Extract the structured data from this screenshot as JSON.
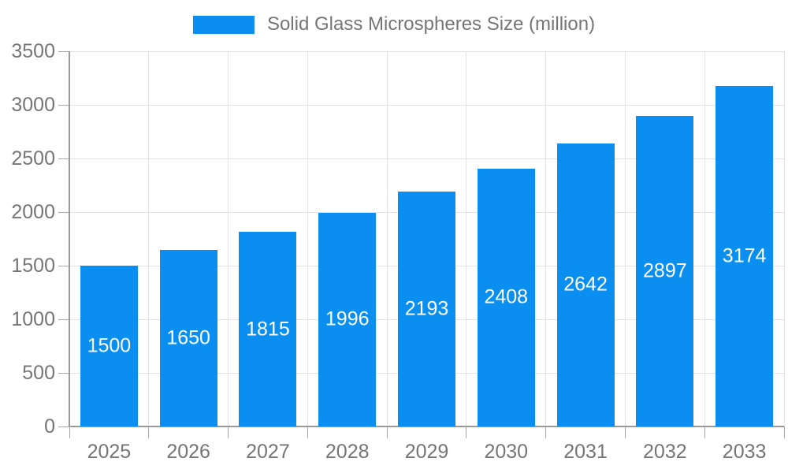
{
  "chart_data": {
    "type": "bar",
    "title": "",
    "legend_label": "Solid Glass Microspheres Size (million)",
    "legend_position": "top-center",
    "categories": [
      "2025",
      "2026",
      "2027",
      "2028",
      "2029",
      "2030",
      "2031",
      "2032",
      "2033"
    ],
    "series": [
      {
        "name": "Solid Glass Microspheres Size (million)",
        "values": [
          1500,
          1650,
          1815,
          1996,
          2193,
          2408,
          2642,
          2897,
          3174
        ]
      }
    ],
    "value_labels": {
      "position": "inside-center",
      "color": "#ffffff"
    },
    "xlabel": "",
    "ylabel": "",
    "ylim": [
      0,
      3500
    ],
    "ytick_step": 500,
    "grid": true
  },
  "colors": {
    "bar": "#0a8ff0",
    "text_gray": "#757575",
    "gridline": "#e3e3e3",
    "axis": "#999999",
    "tick": "#a6a6a6",
    "background": "#ffffff",
    "bar_label": "#ffffff"
  }
}
